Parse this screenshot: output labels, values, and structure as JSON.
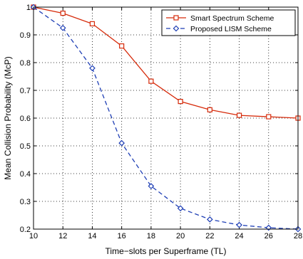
{
  "chart_data": {
    "type": "line",
    "title": "",
    "xlabel": "Time−slots per Superframe (TL)",
    "ylabel": "Mean Collision Probability (McP)",
    "xlim": [
      10,
      28
    ],
    "ylim": [
      0.2,
      1
    ],
    "xticks": [
      10,
      12,
      14,
      16,
      18,
      20,
      22,
      24,
      26,
      28
    ],
    "yticks": [
      0.2,
      0.3,
      0.4,
      0.5,
      0.6,
      0.7,
      0.8,
      0.9,
      1
    ],
    "ytick_labels": [
      "0.2",
      "0.3",
      "0.4",
      "0.5",
      "0.6",
      "0.7",
      "0.8",
      "0.9",
      "1"
    ],
    "grid": true,
    "legend_position": "top-right",
    "x": [
      10,
      12,
      14,
      16,
      18,
      20,
      22,
      24,
      26,
      28
    ],
    "series": [
      {
        "name": "Smart Spectrum Scheme",
        "color": "#d62a0a",
        "line_style": "solid",
        "marker": "square",
        "values": [
          1.0,
          0.978,
          0.94,
          0.86,
          0.733,
          0.66,
          0.63,
          0.61,
          0.605,
          0.6
        ]
      },
      {
        "name": "Proposed LISM Scheme",
        "color": "#1f3fb5",
        "line_style": "dashed",
        "marker": "diamond",
        "values": [
          1.0,
          0.925,
          0.78,
          0.51,
          0.355,
          0.275,
          0.235,
          0.215,
          0.205,
          0.2
        ]
      }
    ]
  }
}
